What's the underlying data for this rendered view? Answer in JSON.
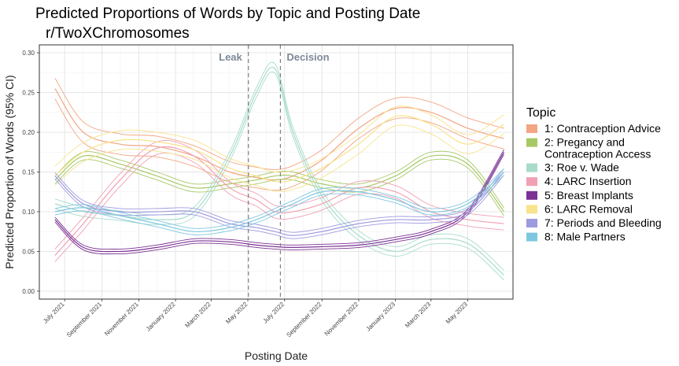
{
  "chart_data": {
    "type": "line",
    "title": "Predicted Proportions of Words by Topic and Posting Date",
    "subtitle": "r/TwoXChromosomes",
    "xlabel": "Posting Date",
    "ylabel": "Predicted Proportion of Words (95% CI)",
    "x_range": [
      "2021-05-20",
      "2023-07-15"
    ],
    "ylim": [
      -0.01,
      0.31
    ],
    "y_ticks": [
      0.0,
      0.05,
      0.1,
      0.15,
      0.2,
      0.25,
      0.3
    ],
    "y_tick_labels": [
      "0.00",
      "0.05",
      "0.10",
      "0.15",
      "0.20",
      "0.25",
      "0.30"
    ],
    "x_ticks": [
      "2021-07-01",
      "2021-09-01",
      "2021-11-01",
      "2022-01-01",
      "2022-03-01",
      "2022-05-01",
      "2022-07-01",
      "2022-09-01",
      "2022-11-01",
      "2023-01-01",
      "2023-03-01",
      "2023-05-01"
    ],
    "x_tick_labels": [
      "July 2021",
      "September 2021",
      "November 2021",
      "January 2022",
      "March 2022",
      "May 2022",
      "July 2022",
      "September 2022",
      "November 2022",
      "January 2023",
      "March 2023",
      "May 2023"
    ],
    "grid": true,
    "vlines": [
      {
        "x": "2022-05-02",
        "label": "Leak"
      },
      {
        "x": "2022-06-24",
        "label": "Decision"
      }
    ],
    "legend": {
      "title": "Topic",
      "position": "right"
    },
    "x_dates": [
      "2021-06-15",
      "2021-08-01",
      "2021-10-01",
      "2021-12-01",
      "2022-02-01",
      "2022-04-01",
      "2022-05-15",
      "2022-06-15",
      "2022-07-15",
      "2022-09-01",
      "2022-11-01",
      "2023-01-01",
      "2023-03-01",
      "2023-05-01",
      "2023-06-30"
    ],
    "series": [
      {
        "name": "1: Contraception Advice",
        "label_lines": [
          "1: Contraception Advice"
        ],
        "color": "#f4a582",
        "ci": 0.013,
        "values": [
          0.255,
          0.2,
          0.185,
          0.182,
          0.17,
          0.15,
          0.143,
          0.14,
          0.145,
          0.165,
          0.205,
          0.23,
          0.225,
          0.205,
          0.192
        ]
      },
      {
        "name": "2: Pregancy and Contraception Access",
        "label_lines": [
          "2: Pregancy and",
          "Contraception Access"
        ],
        "color": "#a6c964",
        "ci": 0.005,
        "values": [
          0.14,
          0.17,
          0.16,
          0.145,
          0.13,
          0.135,
          0.14,
          0.145,
          0.145,
          0.135,
          0.13,
          0.145,
          0.17,
          0.16,
          0.1
        ]
      },
      {
        "name": "3: Roe v. Wade",
        "label_lines": [
          "3: Roe v. Wade"
        ],
        "color": "#a8dcca",
        "ci": 0.006,
        "values": [
          0.11,
          0.1,
          0.095,
          0.09,
          0.1,
          0.17,
          0.25,
          0.28,
          0.2,
          0.12,
          0.07,
          0.05,
          0.065,
          0.06,
          0.02
        ]
      },
      {
        "name": "4: LARC Insertion",
        "label_lines": [
          "4: LARC Insertion"
        ],
        "color": "#f1a0b4",
        "ci": 0.008,
        "values": [
          0.045,
          0.085,
          0.14,
          0.18,
          0.17,
          0.13,
          0.115,
          0.1,
          0.1,
          0.11,
          0.13,
          0.125,
          0.1,
          0.09,
          0.085
        ]
      },
      {
        "name": "5: Breast Implants",
        "label_lines": [
          "5: Breast Implants"
        ],
        "color": "#7b3294",
        "ci": 0.003,
        "values": [
          0.09,
          0.055,
          0.05,
          0.055,
          0.063,
          0.062,
          0.058,
          0.056,
          0.055,
          0.056,
          0.058,
          0.065,
          0.075,
          0.1,
          0.175
        ]
      },
      {
        "name": "6: LARC Removal",
        "label_lines": [
          "6: LARC Removal"
        ],
        "color": "#f8e38c",
        "ci": 0.012,
        "values": [
          0.145,
          0.175,
          0.19,
          0.188,
          0.178,
          0.155,
          0.145,
          0.138,
          0.14,
          0.155,
          0.185,
          0.22,
          0.21,
          0.185,
          0.21
        ]
      },
      {
        "name": "7: Periods and Bleeding",
        "label_lines": [
          "7: Periods and Bleeding"
        ],
        "color": "#9e9ae0",
        "ci": 0.004,
        "values": [
          0.145,
          0.11,
          0.1,
          0.1,
          0.1,
          0.085,
          0.08,
          0.075,
          0.07,
          0.075,
          0.085,
          0.09,
          0.09,
          0.1,
          0.15
        ]
      },
      {
        "name": "8: Male Partners",
        "label_lines": [
          "8: Male Partners"
        ],
        "color": "#7fc7e0",
        "ci": 0.004,
        "values": [
          0.1,
          0.105,
          0.095,
          0.085,
          0.075,
          0.08,
          0.09,
          0.1,
          0.11,
          0.125,
          0.125,
          0.115,
          0.1,
          0.11,
          0.15
        ]
      }
    ]
  }
}
